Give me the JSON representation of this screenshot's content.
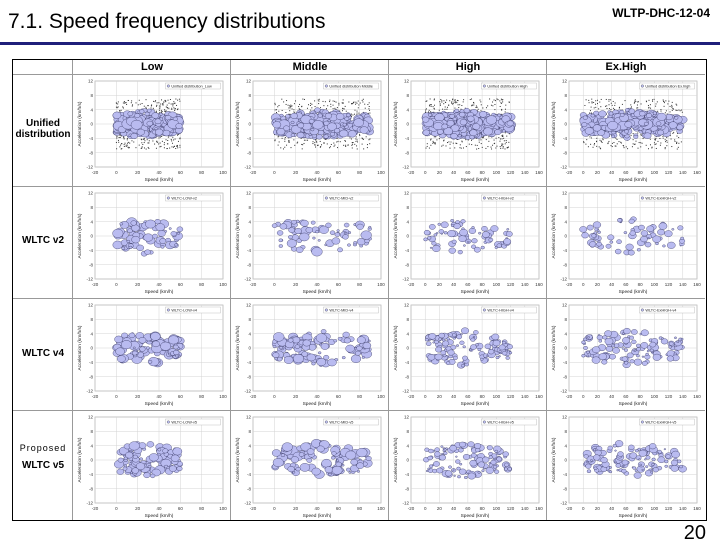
{
  "header": {
    "title": "7.1. Speed frequency distributions",
    "doc_id": "WLTP-DHC-12-04"
  },
  "columns": [
    "Low",
    "Middle",
    "High",
    "Ex.High"
  ],
  "rows": [
    {
      "label_lines": [
        "Unified",
        "distribution"
      ],
      "prefix": ""
    },
    {
      "label_lines": [
        "WLTC v2"
      ],
      "prefix": ""
    },
    {
      "label_lines": [
        "WLTC v4"
      ],
      "prefix": ""
    },
    {
      "label_lines": [
        "WLTC v5"
      ],
      "prefix": "Proposed"
    }
  ],
  "panel_legends": [
    [
      "Unified distribution_Low",
      "Unified distribution Middle",
      "Unified distribution High",
      "Unified distribution Ex.high"
    ],
    [
      "WLTC-LOW-v2",
      "WLTC-MID-v2",
      "WLTC-HIGH-v2",
      "WLTC-ExHIGH-v2"
    ],
    [
      "WLTC-LOW-v4",
      "WLTC-MID-v4",
      "WLTC-HIGH-v4",
      "WLTC-ExHIGH-v4"
    ],
    [
      "WLTC-LOW-v5",
      "WLTC-MID-v5",
      "WLTC-HIGH-v5",
      "WLTC-ExHIGH-v5"
    ]
  ],
  "axes": {
    "xlabel": "Speed (km/h)",
    "ylabel": "Acceleration (km/h/s)",
    "x_ticks_low_mid": [
      "-20",
      "0",
      "20",
      "40",
      "60",
      "80",
      "100"
    ],
    "x_ticks_high_exhigh": [
      "-20",
      "0",
      "20",
      "40",
      "60",
      "80",
      "100",
      "120",
      "140",
      "160"
    ],
    "y_ticks": [
      "12",
      "8",
      "4",
      "0",
      "-4",
      "-8",
      "-12"
    ]
  },
  "page_number": "20"
}
